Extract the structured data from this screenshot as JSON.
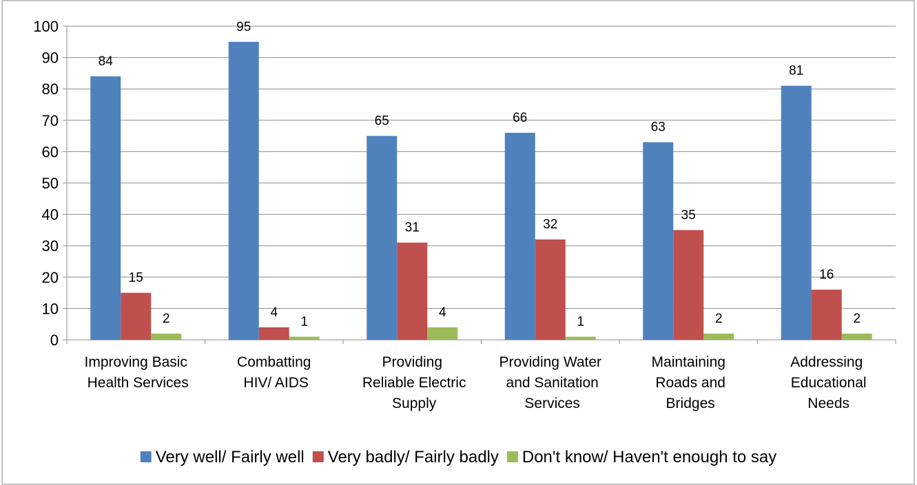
{
  "chart_data": {
    "type": "bar",
    "categories": [
      "Improving Basic\nHealth Services",
      "Combatting\nHIV/ AIDS",
      "Providing\nReliable Electric\nSupply",
      "Providing Water\nand Sanitation\nServices",
      "Maintaining\nRoads and\nBridges",
      "Addressing\nEducational\nNeeds"
    ],
    "series": [
      {
        "name": "Very well/ Fairly well",
        "color": "#4f81bd",
        "values": [
          84,
          95,
          65,
          66,
          63,
          81
        ]
      },
      {
        "name": "Very badly/ Fairly badly",
        "color": "#c0504d",
        "values": [
          15,
          4,
          31,
          32,
          35,
          16
        ]
      },
      {
        "name": "Don't know/ Haven't enough to say",
        "color": "#9bbb59",
        "values": [
          2,
          1,
          4,
          1,
          2,
          2
        ]
      }
    ],
    "ylim": [
      0,
      100
    ],
    "yticks": [
      0,
      10,
      20,
      30,
      40,
      50,
      60,
      70,
      80,
      90,
      100
    ],
    "grid": true,
    "legend": "bottom"
  }
}
